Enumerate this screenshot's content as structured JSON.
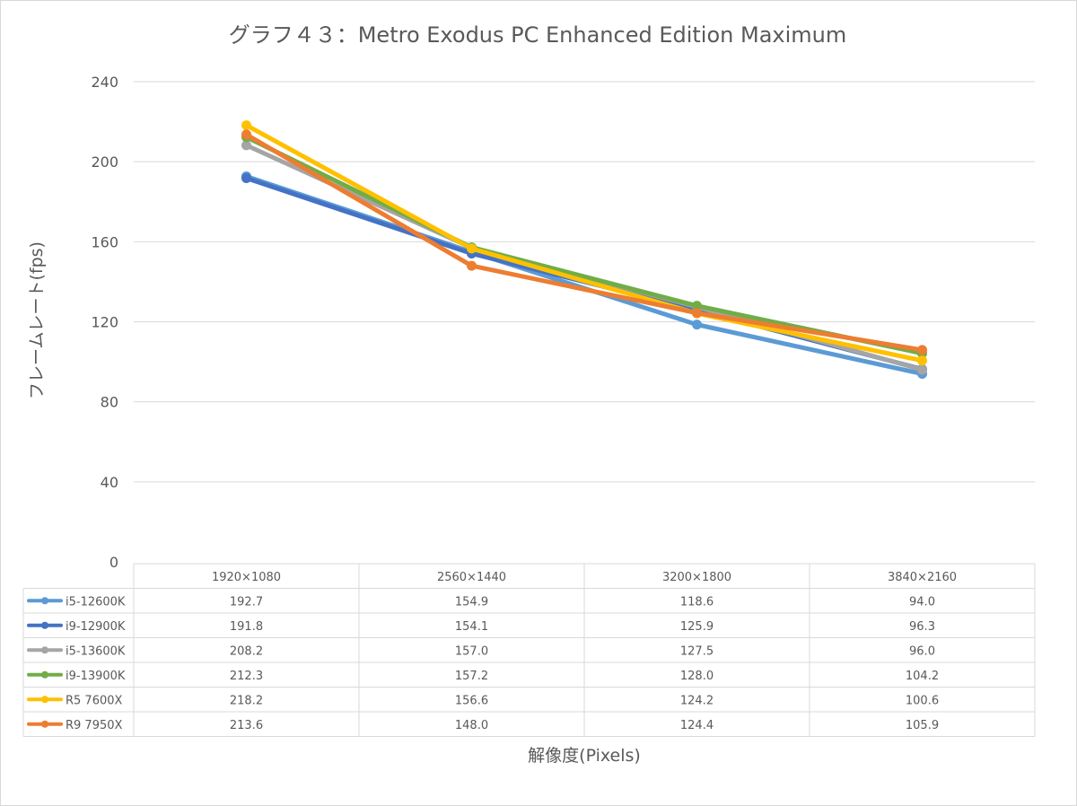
{
  "chart_data": {
    "type": "line",
    "title": "グラフ４３：Metro Exodus PC Enhanced Edition Maximum",
    "xlabel": "解像度(Pixels)",
    "ylabel": "フレームレート(fps)",
    "ylim": [
      0,
      240
    ],
    "yticks": [
      "0",
      "40",
      "80",
      "120",
      "160",
      "200",
      "240"
    ],
    "grid": true,
    "legend": "data-table",
    "categories": [
      "1920×1080",
      "2560×1440",
      "3200×1800",
      "3840×2160"
    ],
    "series": [
      {
        "name": "i5-12600K",
        "color": "#5B9BD5",
        "values": [
          192.7,
          154.9,
          118.6,
          94.0
        ],
        "labels": [
          "192.7",
          "154.9",
          "118.6",
          "94.0"
        ]
      },
      {
        "name": "i9-12900K",
        "color": "#4472C4",
        "values": [
          191.8,
          154.1,
          125.9,
          96.3
        ],
        "labels": [
          "191.8",
          "154.1",
          "125.9",
          "96.3"
        ]
      },
      {
        "name": "i5-13600K",
        "color": "#A5A5A5",
        "values": [
          208.2,
          157.0,
          127.5,
          96.0
        ],
        "labels": [
          "208.2",
          "157.0",
          "127.5",
          "96.0"
        ]
      },
      {
        "name": "i9-13900K",
        "color": "#70AD47",
        "values": [
          212.3,
          157.2,
          128.0,
          104.2
        ],
        "labels": [
          "212.3",
          "157.2",
          "128.0",
          "104.2"
        ]
      },
      {
        "name": "R5 7600X",
        "color": "#FFC000",
        "values": [
          218.2,
          156.6,
          124.2,
          100.6
        ],
        "labels": [
          "218.2",
          "156.6",
          "124.2",
          "100.6"
        ]
      },
      {
        "name": "R9 7950X",
        "color": "#ED7D31",
        "values": [
          213.6,
          148.0,
          124.4,
          105.9
        ],
        "labels": [
          "213.6",
          "148.0",
          "124.4",
          "105.9"
        ]
      }
    ]
  }
}
